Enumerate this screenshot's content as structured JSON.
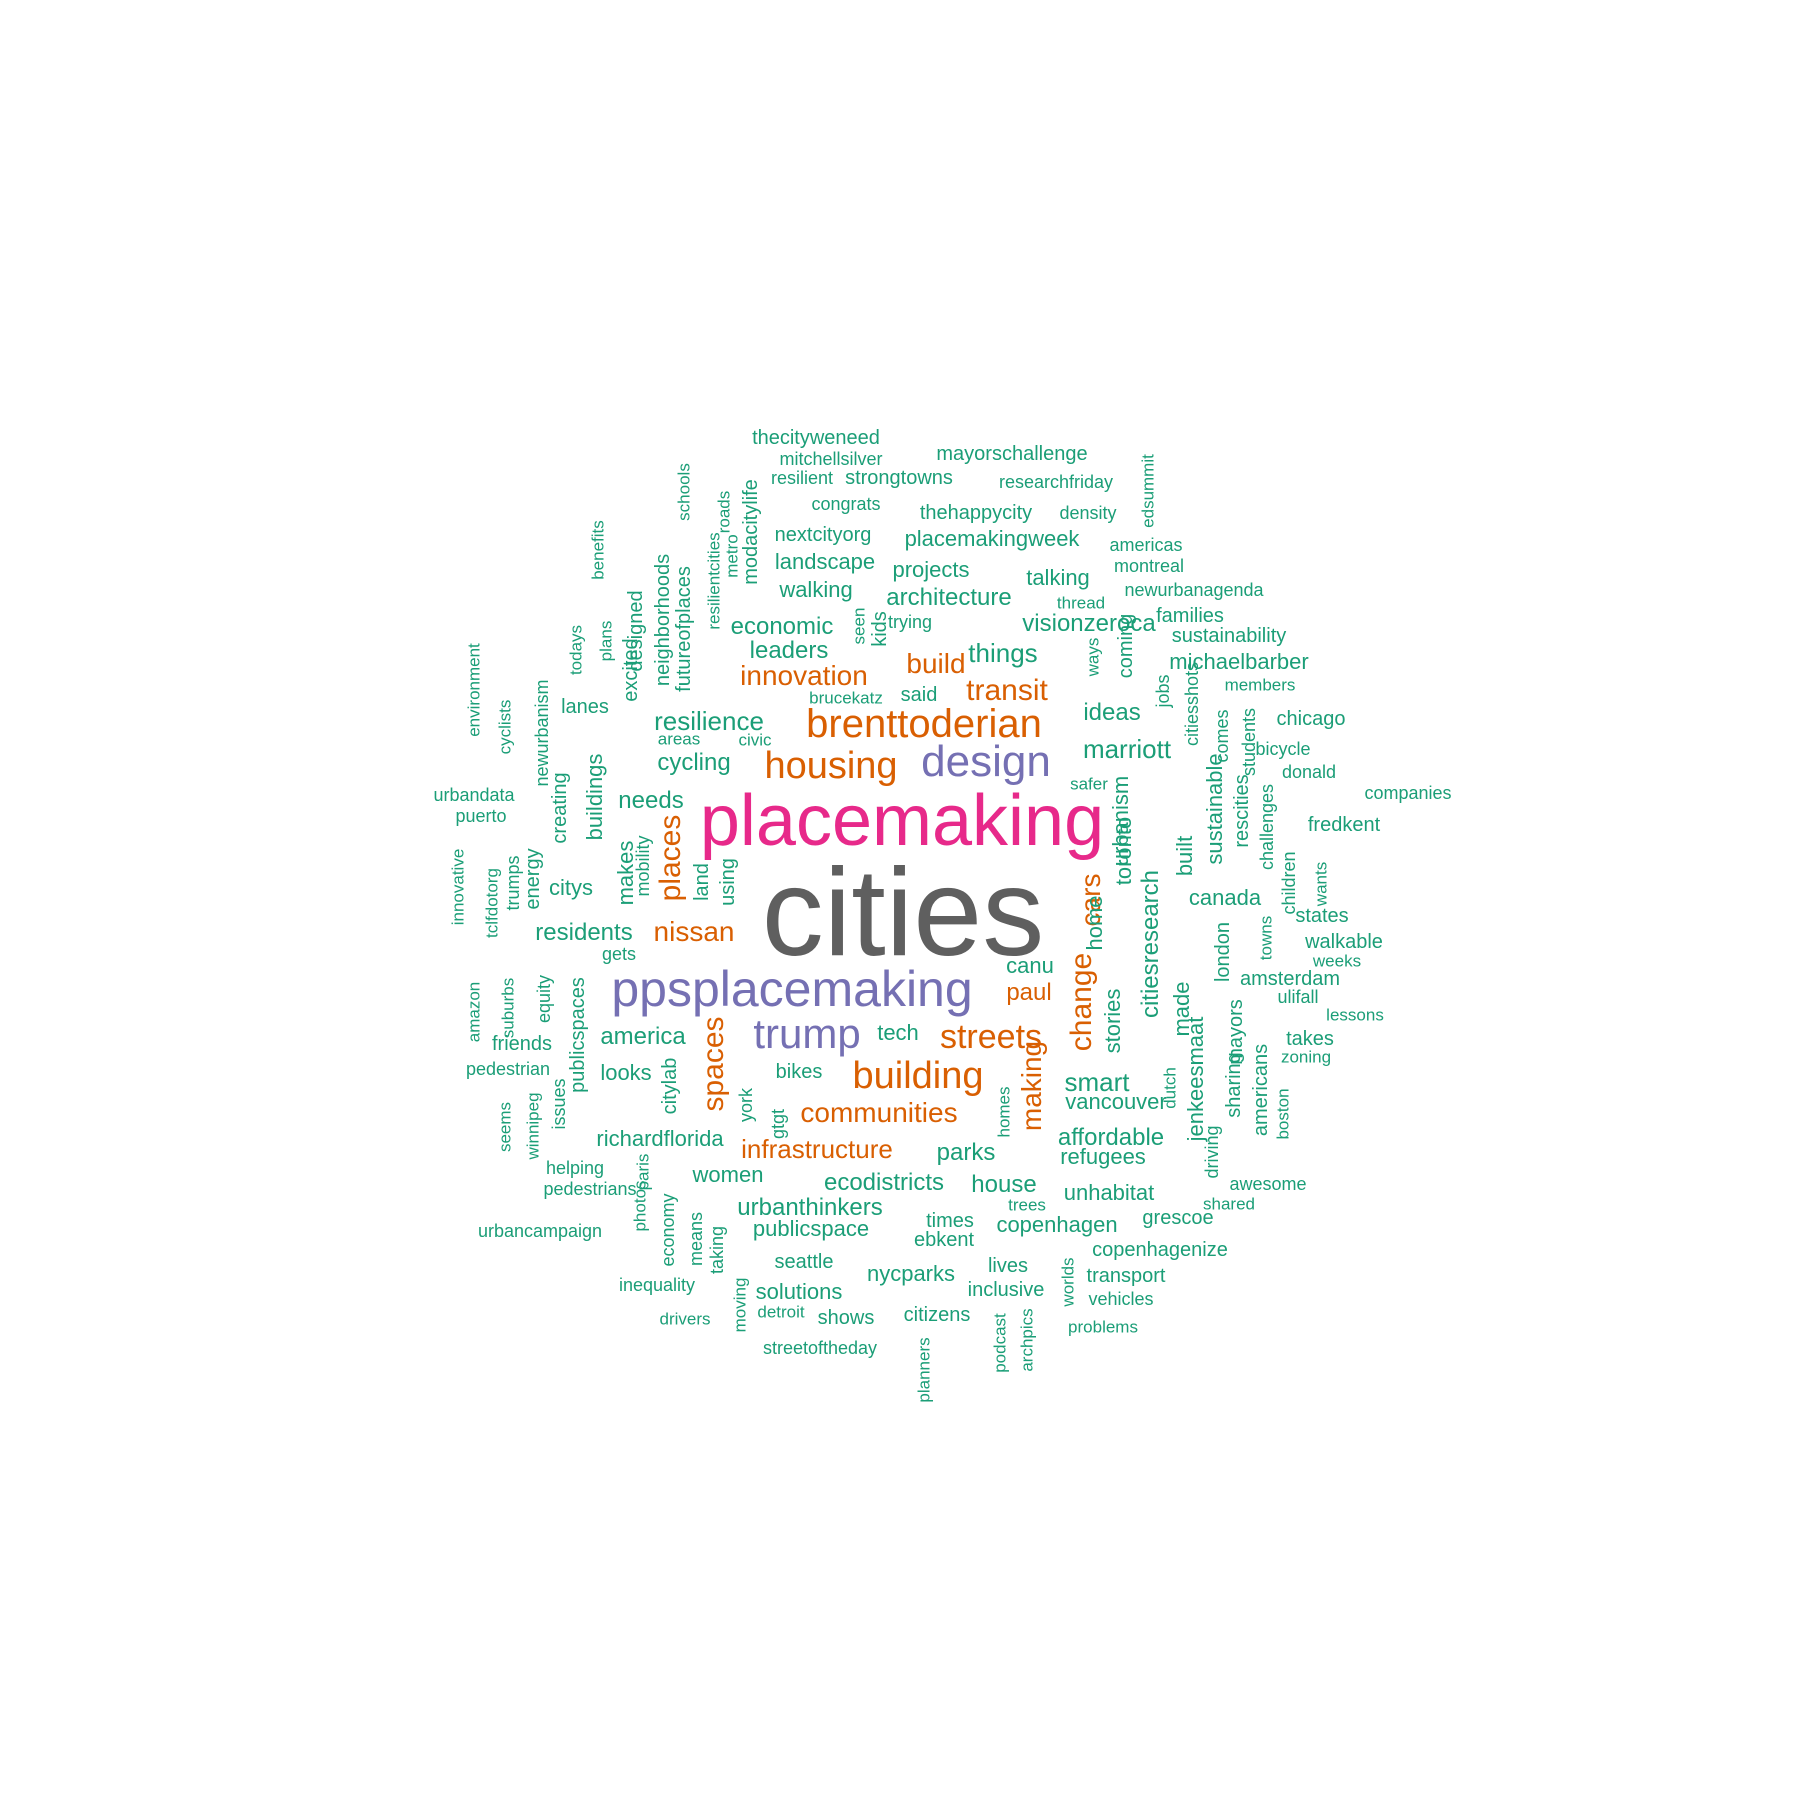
{
  "palette": {
    "c1": "#5F5F5F",
    "c2": "#E7298A",
    "c3": "#7570B3",
    "c4": "#D95F02",
    "c5": "#1B9E77"
  },
  "words": [
    {
      "text": "cities",
      "group": "c1"
    },
    {
      "text": "placemaking",
      "group": "c2"
    },
    {
      "text": "ppsplacemaking",
      "group": "c3"
    },
    {
      "text": "design",
      "group": "c3"
    },
    {
      "text": "trump",
      "group": "c3"
    },
    {
      "text": "brenttoderian",
      "group": "c4"
    },
    {
      "text": "housing",
      "group": "c4"
    },
    {
      "text": "building",
      "group": "c4"
    },
    {
      "text": "streets",
      "group": "c4"
    },
    {
      "text": "transit",
      "group": "c4"
    },
    {
      "text": "innovation",
      "group": "c4"
    },
    {
      "text": "build",
      "group": "c4"
    },
    {
      "text": "nissan",
      "group": "c4"
    },
    {
      "text": "communities",
      "group": "c4"
    },
    {
      "text": "infrastructure",
      "group": "c4"
    },
    {
      "text": "paul",
      "group": "c4"
    },
    {
      "text": "places",
      "group": "c4"
    },
    {
      "text": "spaces",
      "group": "c4"
    },
    {
      "text": "change",
      "group": "c4"
    },
    {
      "text": "cars",
      "group": "c4"
    },
    {
      "text": "making",
      "group": "c4"
    },
    {
      "text": "thecityweneed",
      "group": "c5"
    },
    {
      "text": "mitchellsilver",
      "group": "c5"
    },
    {
      "text": "mayorschallenge",
      "group": "c5"
    },
    {
      "text": "resilient",
      "group": "c5"
    },
    {
      "text": "strongtowns",
      "group": "c5"
    },
    {
      "text": "researchfriday",
      "group": "c5"
    },
    {
      "text": "congrats",
      "group": "c5"
    },
    {
      "text": "thehappycity",
      "group": "c5"
    },
    {
      "text": "density",
      "group": "c5"
    },
    {
      "text": "nextcityorg",
      "group": "c5"
    },
    {
      "text": "placemakingweek",
      "group": "c5"
    },
    {
      "text": "americas",
      "group": "c5"
    },
    {
      "text": "landscape",
      "group": "c5"
    },
    {
      "text": "projects",
      "group": "c5"
    },
    {
      "text": "talking",
      "group": "c5"
    },
    {
      "text": "montreal",
      "group": "c5"
    },
    {
      "text": "walking",
      "group": "c5"
    },
    {
      "text": "architecture",
      "group": "c5"
    },
    {
      "text": "thread",
      "group": "c5"
    },
    {
      "text": "newurbanagenda",
      "group": "c5"
    },
    {
      "text": "economic",
      "group": "c5"
    },
    {
      "text": "trying",
      "group": "c5"
    },
    {
      "text": "visionzeroca",
      "group": "c5"
    },
    {
      "text": "families",
      "group": "c5"
    },
    {
      "text": "sustainability",
      "group": "c5"
    },
    {
      "text": "leaders",
      "group": "c5"
    },
    {
      "text": "things",
      "group": "c5"
    },
    {
      "text": "michaelbarber",
      "group": "c5"
    },
    {
      "text": "lanes",
      "group": "c5"
    },
    {
      "text": "brucekatz",
      "group": "c5"
    },
    {
      "text": "said",
      "group": "c5"
    },
    {
      "text": "members",
      "group": "c5"
    },
    {
      "text": "resilience",
      "group": "c5"
    },
    {
      "text": "ideas",
      "group": "c5"
    },
    {
      "text": "chicago",
      "group": "c5"
    },
    {
      "text": "areas",
      "group": "c5"
    },
    {
      "text": "civic",
      "group": "c5"
    },
    {
      "text": "bicycle",
      "group": "c5"
    },
    {
      "text": "marriott",
      "group": "c5"
    },
    {
      "text": "cycling",
      "group": "c5"
    },
    {
      "text": "donald",
      "group": "c5"
    },
    {
      "text": "urbandata",
      "group": "c5"
    },
    {
      "text": "safer",
      "group": "c5"
    },
    {
      "text": "companies",
      "group": "c5"
    },
    {
      "text": "needs",
      "group": "c5"
    },
    {
      "text": "puerto",
      "group": "c5"
    },
    {
      "text": "fredkent",
      "group": "c5"
    },
    {
      "text": "citys",
      "group": "c5"
    },
    {
      "text": "canada",
      "group": "c5"
    },
    {
      "text": "states",
      "group": "c5"
    },
    {
      "text": "residents",
      "group": "c5"
    },
    {
      "text": "walkable",
      "group": "c5"
    },
    {
      "text": "gets",
      "group": "c5"
    },
    {
      "text": "weeks",
      "group": "c5"
    },
    {
      "text": "canu",
      "group": "c5"
    },
    {
      "text": "amsterdam",
      "group": "c5"
    },
    {
      "text": "ulifall",
      "group": "c5"
    },
    {
      "text": "lessons",
      "group": "c5"
    },
    {
      "text": "friends",
      "group": "c5"
    },
    {
      "text": "america",
      "group": "c5"
    },
    {
      "text": "tech",
      "group": "c5"
    },
    {
      "text": "takes",
      "group": "c5"
    },
    {
      "text": "pedestrian",
      "group": "c5"
    },
    {
      "text": "zoning",
      "group": "c5"
    },
    {
      "text": "looks",
      "group": "c5"
    },
    {
      "text": "bikes",
      "group": "c5"
    },
    {
      "text": "smart",
      "group": "c5"
    },
    {
      "text": "vancouver",
      "group": "c5"
    },
    {
      "text": "richardflorida",
      "group": "c5"
    },
    {
      "text": "affordable",
      "group": "c5"
    },
    {
      "text": "parks",
      "group": "c5"
    },
    {
      "text": "refugees",
      "group": "c5"
    },
    {
      "text": "helping",
      "group": "c5"
    },
    {
      "text": "women",
      "group": "c5"
    },
    {
      "text": "ecodistricts",
      "group": "c5"
    },
    {
      "text": "house",
      "group": "c5"
    },
    {
      "text": "awesome",
      "group": "c5"
    },
    {
      "text": "pedestrians",
      "group": "c5"
    },
    {
      "text": "unhabitat",
      "group": "c5"
    },
    {
      "text": "urbanthinkers",
      "group": "c5"
    },
    {
      "text": "shared",
      "group": "c5"
    },
    {
      "text": "times",
      "group": "c5"
    },
    {
      "text": "grescoe",
      "group": "c5"
    },
    {
      "text": "urbancampaign",
      "group": "c5"
    },
    {
      "text": "publicspace",
      "group": "c5"
    },
    {
      "text": "copenhagen",
      "group": "c5"
    },
    {
      "text": "ebkent",
      "group": "c5"
    },
    {
      "text": "copenhagenize",
      "group": "c5"
    },
    {
      "text": "seattle",
      "group": "c5"
    },
    {
      "text": "lives",
      "group": "c5"
    },
    {
      "text": "nycparks",
      "group": "c5"
    },
    {
      "text": "transport",
      "group": "c5"
    },
    {
      "text": "inequality",
      "group": "c5"
    },
    {
      "text": "solutions",
      "group": "c5"
    },
    {
      "text": "inclusive",
      "group": "c5"
    },
    {
      "text": "vehicles",
      "group": "c5"
    },
    {
      "text": "detroit",
      "group": "c5"
    },
    {
      "text": "drivers",
      "group": "c5"
    },
    {
      "text": "shows",
      "group": "c5"
    },
    {
      "text": "citizens",
      "group": "c5"
    },
    {
      "text": "problems",
      "group": "c5"
    },
    {
      "text": "streetoftheday",
      "group": "c5"
    },
    {
      "text": "trees",
      "group": "c5"
    },
    {
      "text": "schools",
      "group": "c5"
    },
    {
      "text": "roads",
      "group": "c5"
    },
    {
      "text": "modacitylife",
      "group": "c5"
    },
    {
      "text": "metro",
      "group": "c5"
    },
    {
      "text": "resilientcities",
      "group": "c5"
    },
    {
      "text": "futureofplaces",
      "group": "c5"
    },
    {
      "text": "neighborhoods",
      "group": "c5"
    },
    {
      "text": "designed",
      "group": "c5"
    },
    {
      "text": "excited",
      "group": "c5"
    },
    {
      "text": "benefits",
      "group": "c5"
    },
    {
      "text": "plans",
      "group": "c5"
    },
    {
      "text": "todays",
      "group": "c5"
    },
    {
      "text": "seen",
      "group": "c5"
    },
    {
      "text": "kids",
      "group": "c5"
    },
    {
      "text": "edsummit",
      "group": "c5"
    },
    {
      "text": "ways",
      "group": "c5"
    },
    {
      "text": "coming",
      "group": "c5"
    },
    {
      "text": "jobs",
      "group": "c5"
    },
    {
      "text": "citiesshots",
      "group": "c5"
    },
    {
      "text": "comes",
      "group": "c5"
    },
    {
      "text": "students",
      "group": "c5"
    },
    {
      "text": "environment",
      "group": "c5"
    },
    {
      "text": "cyclists",
      "group": "c5"
    },
    {
      "text": "newurbanism",
      "group": "c5"
    },
    {
      "text": "creating",
      "group": "c5"
    },
    {
      "text": "buildings",
      "group": "c5"
    },
    {
      "text": "innovative",
      "group": "c5"
    },
    {
      "text": "tclfdotorg",
      "group": "c5"
    },
    {
      "text": "trumps",
      "group": "c5"
    },
    {
      "text": "energy",
      "group": "c5"
    },
    {
      "text": "makes",
      "group": "c5"
    },
    {
      "text": "mobility",
      "group": "c5"
    },
    {
      "text": "land",
      "group": "c5"
    },
    {
      "text": "using",
      "group": "c5"
    },
    {
      "text": "urbanism",
      "group": "c5"
    },
    {
      "text": "home",
      "group": "c5"
    },
    {
      "text": "toronto",
      "group": "c5"
    },
    {
      "text": "citiesresearch",
      "group": "c5"
    },
    {
      "text": "built",
      "group": "c5"
    },
    {
      "text": "sustainable",
      "group": "c5"
    },
    {
      "text": "rescities",
      "group": "c5"
    },
    {
      "text": "challenges",
      "group": "c5"
    },
    {
      "text": "children",
      "group": "c5"
    },
    {
      "text": "wants",
      "group": "c5"
    },
    {
      "text": "towns",
      "group": "c5"
    },
    {
      "text": "london",
      "group": "c5"
    },
    {
      "text": "made",
      "group": "c5"
    },
    {
      "text": "jenkeesmaat",
      "group": "c5"
    },
    {
      "text": "stories",
      "group": "c5"
    },
    {
      "text": "amazon",
      "group": "c5"
    },
    {
      "text": "suburbs",
      "group": "c5"
    },
    {
      "text": "equity",
      "group": "c5"
    },
    {
      "text": "publicspaces",
      "group": "c5"
    },
    {
      "text": "seems",
      "group": "c5"
    },
    {
      "text": "winnipeg",
      "group": "c5"
    },
    {
      "text": "issues",
      "group": "c5"
    },
    {
      "text": "citylab",
      "group": "c5"
    },
    {
      "text": "york",
      "group": "c5"
    },
    {
      "text": "gtgt",
      "group": "c5"
    },
    {
      "text": "homes",
      "group": "c5"
    },
    {
      "text": "dutch",
      "group": "c5"
    },
    {
      "text": "driving",
      "group": "c5"
    },
    {
      "text": "sharing",
      "group": "c5"
    },
    {
      "text": "mayors",
      "group": "c5"
    },
    {
      "text": "americans",
      "group": "c5"
    },
    {
      "text": "boston",
      "group": "c5"
    },
    {
      "text": "photos",
      "group": "c5"
    },
    {
      "text": "paris",
      "group": "c5"
    },
    {
      "text": "economy",
      "group": "c5"
    },
    {
      "text": "means",
      "group": "c5"
    },
    {
      "text": "taking",
      "group": "c5"
    },
    {
      "text": "moving",
      "group": "c5"
    },
    {
      "text": "worlds",
      "group": "c5"
    },
    {
      "text": "podcast",
      "group": "c5"
    },
    {
      "text": "archpics",
      "group": "c5"
    },
    {
      "text": "planners",
      "group": "c5"
    }
  ]
}
